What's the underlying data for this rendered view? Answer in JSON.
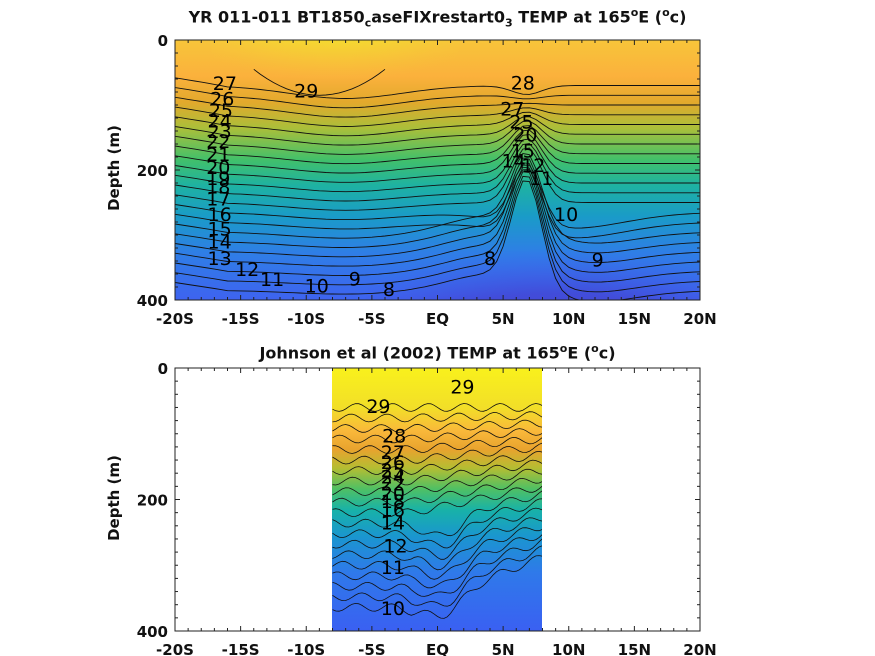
{
  "chart_data": [
    {
      "type": "contour",
      "title_parts": [
        "YR 011-011 BT1850",
        "c",
        "aseFIXrestart0",
        "3",
        " TEMP at 165",
        "o",
        "E (",
        "o",
        "c)"
      ],
      "ylabel": "Depth (m)",
      "xlim": [
        -20,
        20
      ],
      "ylim": [
        0,
        400
      ],
      "xticks": [
        -20,
        -15,
        -10,
        -5,
        0,
        5,
        10,
        15,
        20
      ],
      "xtick_labels": [
        "-20S",
        "-15S",
        "-10S",
        "-5S",
        "EQ",
        "5N",
        "10N",
        "15N",
        "20N"
      ],
      "yticks": [
        0,
        200,
        400
      ],
      "ytick_labels": [
        "0",
        "200",
        "400"
      ],
      "contour_labels": [
        {
          "x": -16.2,
          "y": 66,
          "text": "27"
        },
        {
          "x": -16.4,
          "y": 90,
          "text": "26"
        },
        {
          "x": -16.5,
          "y": 108,
          "text": "25"
        },
        {
          "x": -16.6,
          "y": 124,
          "text": "24"
        },
        {
          "x": -16.6,
          "y": 140,
          "text": "23"
        },
        {
          "x": -16.7,
          "y": 155,
          "text": "22"
        },
        {
          "x": -16.7,
          "y": 175,
          "text": "21"
        },
        {
          "x": -16.7,
          "y": 195,
          "text": "20"
        },
        {
          "x": -16.7,
          "y": 212,
          "text": "19"
        },
        {
          "x": -16.7,
          "y": 225,
          "text": "18"
        },
        {
          "x": -16.7,
          "y": 244,
          "text": "17"
        },
        {
          "x": -16.6,
          "y": 268,
          "text": "16"
        },
        {
          "x": -16.6,
          "y": 290,
          "text": "15"
        },
        {
          "x": -16.6,
          "y": 310,
          "text": "14"
        },
        {
          "x": -16.6,
          "y": 335,
          "text": "13"
        },
        {
          "x": -14.5,
          "y": 352,
          "text": "12"
        },
        {
          "x": -12.6,
          "y": 368,
          "text": "11"
        },
        {
          "x": -9.2,
          "y": 378,
          "text": "10"
        },
        {
          "x": -6.3,
          "y": 367,
          "text": "9"
        },
        {
          "x": -3.7,
          "y": 383,
          "text": "8"
        },
        {
          "x": -10.0,
          "y": 78,
          "text": "29"
        },
        {
          "x": 6.5,
          "y": 65,
          "text": "28"
        },
        {
          "x": 5.7,
          "y": 105,
          "text": "27"
        },
        {
          "x": 6.4,
          "y": 125,
          "text": "25"
        },
        {
          "x": 6.7,
          "y": 145,
          "text": "20"
        },
        {
          "x": 6.5,
          "y": 170,
          "text": "15"
        },
        {
          "x": 5.8,
          "y": 185,
          "text": "14"
        },
        {
          "x": 7.3,
          "y": 192,
          "text": "12"
        },
        {
          "x": 7.9,
          "y": 212,
          "text": "11"
        },
        {
          "x": 4.0,
          "y": 335,
          "text": "8"
        },
        {
          "x": 9.8,
          "y": 268,
          "text": "10"
        },
        {
          "x": 12.2,
          "y": 338,
          "text": "9"
        }
      ]
    },
    {
      "type": "contour",
      "title_parts": [
        "Johnson et al (2002) TEMP at 165",
        "o",
        "E (",
        "o",
        "c)"
      ],
      "ylabel": "Depth (m)",
      "xlim": [
        -20,
        20
      ],
      "ylim": [
        0,
        400
      ],
      "data_extent_x": [
        -8,
        8
      ],
      "xticks": [
        -20,
        -15,
        -10,
        -5,
        0,
        5,
        10,
        15,
        20
      ],
      "xtick_labels": [
        "-20S",
        "-15S",
        "-10S",
        "-5S",
        "EQ",
        "5N",
        "10N",
        "15N",
        "20N"
      ],
      "yticks": [
        0,
        200,
        400
      ],
      "ytick_labels": [
        "0",
        "200",
        "400"
      ],
      "contour_labels": [
        {
          "x": 1.9,
          "y": 28,
          "text": "29"
        },
        {
          "x": -4.5,
          "y": 58,
          "text": "29"
        },
        {
          "x": -3.3,
          "y": 103,
          "text": "28"
        },
        {
          "x": -3.4,
          "y": 128,
          "text": "27"
        },
        {
          "x": -3.4,
          "y": 143,
          "text": "26"
        },
        {
          "x": -3.4,
          "y": 155,
          "text": "25"
        },
        {
          "x": -3.4,
          "y": 165,
          "text": "24"
        },
        {
          "x": -3.4,
          "y": 176,
          "text": "22"
        },
        {
          "x": -3.4,
          "y": 190,
          "text": "20"
        },
        {
          "x": -3.4,
          "y": 202,
          "text": "18"
        },
        {
          "x": -3.4,
          "y": 215,
          "text": "16"
        },
        {
          "x": -3.4,
          "y": 235,
          "text": "14"
        },
        {
          "x": -3.2,
          "y": 270,
          "text": "12"
        },
        {
          "x": -3.4,
          "y": 303,
          "text": "11"
        },
        {
          "x": -3.4,
          "y": 365,
          "text": "10"
        }
      ]
    }
  ]
}
